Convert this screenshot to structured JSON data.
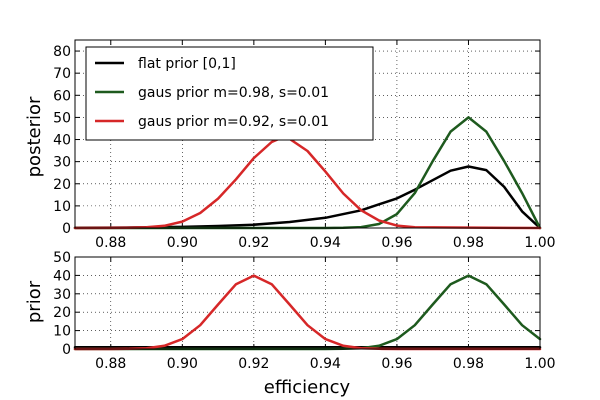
{
  "chart_data": [
    {
      "id": "posterior-panel",
      "type": "line",
      "ylabel": "posterior",
      "xlim": [
        0.87,
        1.0
      ],
      "ylim": [
        0,
        85
      ],
      "xticks": [
        "0.88",
        "0.90",
        "0.92",
        "0.94",
        "0.96",
        "0.98",
        "1.00"
      ],
      "yticks": [
        "0",
        "10",
        "20",
        "30",
        "40",
        "50",
        "60",
        "70",
        "80"
      ],
      "grid": true,
      "legend_position": "top-left",
      "series": [
        {
          "name": "flat prior [0,1]",
          "color": "#000000",
          "x": [
            0.87,
            0.88,
            0.89,
            0.9,
            0.91,
            0.92,
            0.93,
            0.94,
            0.95,
            0.96,
            0.965,
            0.97,
            0.975,
            0.98,
            0.985,
            0.99,
            0.995,
            1.0
          ],
          "y": [
            0.1,
            0.2,
            0.3,
            0.5,
            0.9,
            1.5,
            2.7,
            4.6,
            8.0,
            13.4,
            17.3,
            21.6,
            25.9,
            27.8,
            26.2,
            18.6,
            7.5,
            0
          ]
        },
        {
          "name": "gaus prior m=0.98, s=0.01",
          "color": "#1e5a1e",
          "x": [
            0.87,
            0.94,
            0.945,
            0.95,
            0.955,
            0.96,
            0.965,
            0.97,
            0.975,
            0.98,
            0.985,
            0.99,
            0.995,
            1.0
          ],
          "y": [
            0,
            0,
            0.1,
            0.4,
            1.8,
            6.3,
            15.8,
            30.2,
            43.6,
            50.0,
            43.6,
            30.2,
            15.8,
            0
          ]
        },
        {
          "name": "gaus prior m=0.92, s=0.01",
          "color": "#d62728",
          "x": [
            0.87,
            0.885,
            0.89,
            0.895,
            0.9,
            0.905,
            0.91,
            0.915,
            0.92,
            0.925,
            0.928,
            0.93,
            0.935,
            0.94,
            0.945,
            0.95,
            0.955,
            0.96,
            0.965,
            1.0
          ],
          "y": [
            0,
            0.1,
            0.3,
            1.0,
            2.9,
            6.8,
            13.3,
            22.0,
            31.6,
            38.9,
            41.0,
            40.3,
            34.8,
            25.5,
            15.6,
            8.0,
            3.4,
            1.1,
            0.3,
            0
          ]
        }
      ]
    },
    {
      "id": "prior-panel",
      "type": "line",
      "xlabel": "efficiency",
      "ylabel": "prior",
      "xlim": [
        0.87,
        1.0
      ],
      "ylim": [
        0,
        50
      ],
      "xticks": [
        "0.88",
        "0.90",
        "0.92",
        "0.94",
        "0.96",
        "0.98",
        "1.00"
      ],
      "yticks": [
        "0",
        "10",
        "20",
        "30",
        "40",
        "50"
      ],
      "grid": true,
      "series": [
        {
          "color": "#000000",
          "x": [
            0.87,
            1.0
          ],
          "y": [
            1,
            1
          ]
        },
        {
          "color": "#1e5a1e",
          "x": [
            0.87,
            0.94,
            0.945,
            0.95,
            0.955,
            0.96,
            0.965,
            0.97,
            0.975,
            0.98,
            0.985,
            0.99,
            0.995,
            1.0
          ],
          "y": [
            0,
            0.01,
            0.09,
            0.44,
            1.75,
            5.4,
            12.95,
            24.2,
            35.2,
            39.9,
            35.2,
            24.2,
            12.95,
            5.4
          ]
        },
        {
          "color": "#d62728",
          "x": [
            0.87,
            0.88,
            0.885,
            0.89,
            0.895,
            0.9,
            0.905,
            0.91,
            0.915,
            0.92,
            0.925,
            0.93,
            0.935,
            0.94,
            0.945,
            0.95,
            0.955,
            0.96,
            1.0
          ],
          "y": [
            0,
            0.01,
            0.09,
            0.44,
            1.75,
            5.4,
            12.95,
            24.2,
            35.2,
            39.9,
            35.2,
            24.2,
            12.95,
            5.4,
            1.75,
            0.44,
            0.09,
            0.01,
            0
          ]
        }
      ]
    }
  ]
}
